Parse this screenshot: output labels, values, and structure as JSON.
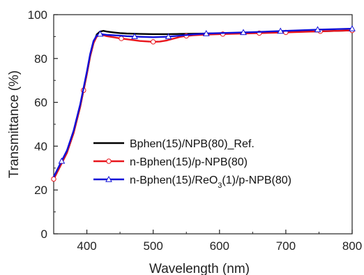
{
  "chart_data": {
    "type": "line",
    "title": "",
    "xlabel": "Wavelength (nm)",
    "ylabel": "Transmittance (%)",
    "xlim": [
      350,
      800
    ],
    "ylim": [
      0,
      100
    ],
    "x_ticks": [
      400,
      500,
      600,
      700,
      800
    ],
    "y_ticks": [
      0,
      20,
      40,
      60,
      80,
      100
    ],
    "grid": false,
    "legend_position": "center-right",
    "series": [
      {
        "name": "Bphen(15)/NPB(80)_Ref.",
        "color": "#000000",
        "marker": "none",
        "x": [
          350,
          360,
          370,
          380,
          390,
          400,
          405,
          410,
          415,
          420,
          425,
          430,
          440,
          450,
          460,
          480,
          500,
          520,
          540,
          560,
          600,
          650,
          700,
          750,
          800
        ],
        "y": [
          25,
          31,
          37,
          46,
          58,
          73,
          81,
          87,
          91,
          92.3,
          92.6,
          92.3,
          91.9,
          91.6,
          91.4,
          91.2,
          91.1,
          91.1,
          91.2,
          91.3,
          91.5,
          91.8,
          92.1,
          92.4,
          92.8
        ]
      },
      {
        "name": "n-Bphen(15)/p-NPB(80)",
        "color": "#e8141b",
        "marker": "circle",
        "x": [
          350,
          360,
          370,
          380,
          390,
          400,
          405,
          410,
          415,
          420,
          425,
          430,
          440,
          450,
          460,
          470,
          480,
          490,
          500,
          510,
          520,
          530,
          540,
          550,
          560,
          580,
          600,
          650,
          700,
          750,
          800
        ],
        "y": [
          25,
          31,
          37,
          46,
          58,
          73,
          81,
          87,
          90,
          90.8,
          90.6,
          90.2,
          89.7,
          89.2,
          88.8,
          88.4,
          88.0,
          87.8,
          87.6,
          87.7,
          88.2,
          89.0,
          89.8,
          90.3,
          90.6,
          90.9,
          91.1,
          91.5,
          91.9,
          92.4,
          92.8
        ],
        "marker_x": [
          350,
          395,
          452,
          500,
          550,
          605,
          660,
          700,
          752,
          800
        ]
      },
      {
        "name": "n-Bphen(15)/ReO",
        "name_sub": "3",
        "name_tail": "(1)/p-NPB(80)",
        "color": "#1010d8",
        "marker": "triangle",
        "x": [
          350,
          360,
          370,
          380,
          390,
          400,
          405,
          410,
          415,
          420,
          425,
          430,
          440,
          450,
          460,
          480,
          500,
          520,
          540,
          560,
          580,
          600,
          650,
          700,
          750,
          800
        ],
        "y": [
          26,
          32,
          38,
          47,
          59,
          74,
          82,
          88,
          90.5,
          91.2,
          91.0,
          90.8,
          90.6,
          90.4,
          90.2,
          89.9,
          89.7,
          89.9,
          90.4,
          91.0,
          91.4,
          91.6,
          92.0,
          92.6,
          93.2,
          93.6
        ],
        "marker_x": [
          362,
          420,
          472,
          523,
          580,
          636,
          692,
          748,
          800
        ]
      }
    ]
  }
}
